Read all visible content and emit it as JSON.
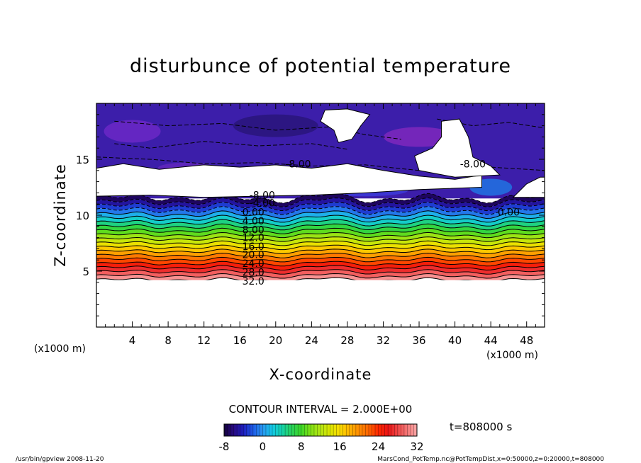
{
  "chart_data": {
    "type": "heatmap",
    "title": "disturbunce of potential temperature",
    "xlabel": "X-coordinate",
    "ylabel": "Z-coordinate",
    "x_unit": "(x1000 m)",
    "y_unit": "(x1000 m)",
    "xlim": [
      0,
      50
    ],
    "ylim": [
      0,
      20
    ],
    "x_ticks": [
      4,
      8,
      12,
      16,
      20,
      24,
      28,
      32,
      36,
      40,
      44,
      48
    ],
    "y_ticks": [
      5,
      10,
      15
    ],
    "contour_interval": "CONTOUR INTERVAL = 2.000E+00",
    "time_label": "t=808000 s",
    "colorbar": {
      "min": -8,
      "max": 32,
      "ticks": [
        -8,
        0,
        8,
        16,
        24,
        32
      ]
    },
    "contour_labels": [
      {
        "text": "-8.00",
        "x": 22.5,
        "z": 14.6
      },
      {
        "text": "-8.00",
        "x": 42.0,
        "z": 14.6
      },
      {
        "text": "-8.00",
        "x": 18.5,
        "z": 11.8
      },
      {
        "text": "-4.00",
        "x": 18.5,
        "z": 11.1
      },
      {
        "text": "0.00",
        "x": 17.5,
        "z": 10.3
      },
      {
        "text": "0.00",
        "x": 46.0,
        "z": 10.3
      },
      {
        "text": "4.00",
        "x": 17.5,
        "z": 9.5
      },
      {
        "text": "8.00",
        "x": 17.5,
        "z": 8.7
      },
      {
        "text": "12.0",
        "x": 17.5,
        "z": 8.0
      },
      {
        "text": "16.0",
        "x": 17.5,
        "z": 7.2
      },
      {
        "text": "20.0",
        "x": 17.5,
        "z": 6.5
      },
      {
        "text": "24.0",
        "x": 17.5,
        "z": 5.7
      },
      {
        "text": "28.0",
        "x": 17.5,
        "z": 4.9
      },
      {
        "text": "32.0",
        "x": 17.5,
        "z": 4.1
      }
    ],
    "grid": false,
    "legend": "colorbar-bottom"
  },
  "footer": {
    "left": "/usr/bin/gpview  2008-11-20",
    "right": "MarsCond_PotTemp.nc@PotTempDist,x=0:50000,z=0:20000,t=808000"
  }
}
